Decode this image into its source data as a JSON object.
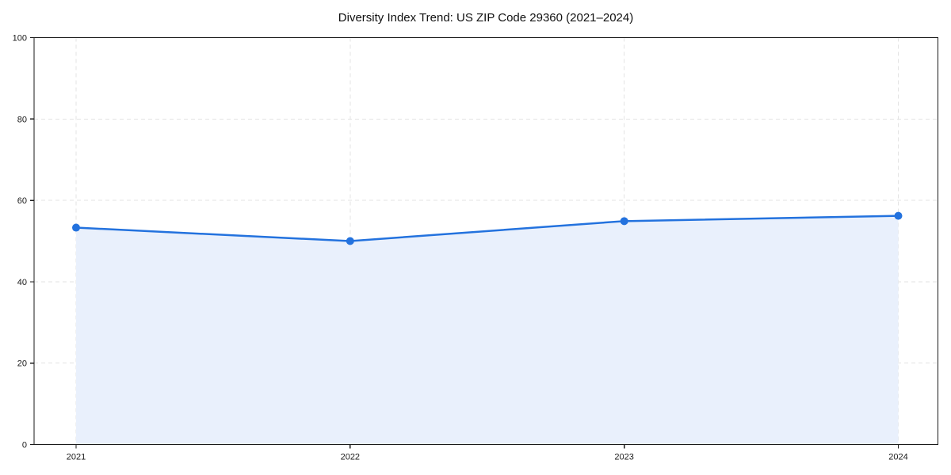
{
  "page": {
    "background": "#ffffff"
  },
  "chart_data": {
    "type": "line",
    "title": "Diversity Index Trend: US ZIP Code 29360 (2021–2024)",
    "categories": [
      "2021",
      "2022",
      "2023",
      "2024"
    ],
    "series": [
      {
        "name": "Diversity Index",
        "values": [
          53.3,
          50.0,
          54.9,
          56.2
        ]
      }
    ],
    "xlabel": "",
    "ylabel": "",
    "ylim": [
      0,
      100
    ],
    "yticks": [
      0,
      20,
      40,
      60,
      80,
      100
    ],
    "area_fill_under_line": true,
    "grid": "dashed-both-axes",
    "legend_position": "none",
    "marker_shape": "circle",
    "colors": {
      "line": "#2372de",
      "marker": "#2372de",
      "area_fill": "#e9f0fc",
      "gridline": "#e3e3e3",
      "spine": "#1a1a1a",
      "tick_label": "#1a1a1a",
      "title": "#111111",
      "background": "#ffffff"
    }
  }
}
